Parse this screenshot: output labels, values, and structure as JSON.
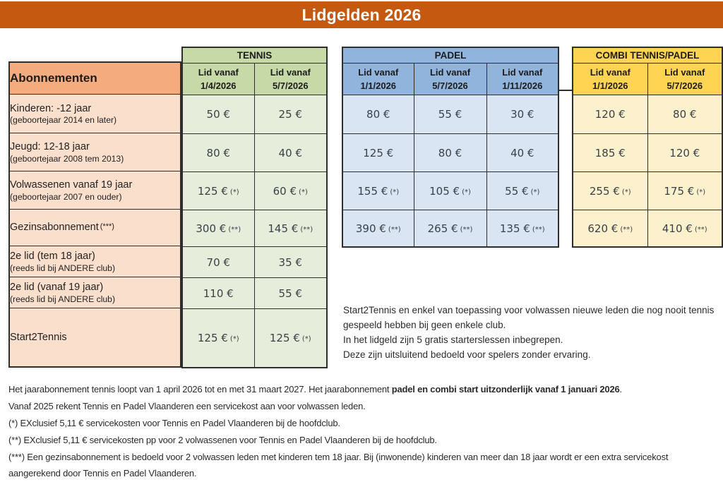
{
  "title": "Lidgelden 2026",
  "colors": {
    "banner_bg": "#C4590F",
    "banner_text": "#FFFFFF",
    "label_header_bg": "#F4AC7E",
    "label_body_bg": "#FBDFCD",
    "tennis_header_bg": "#C6D9A7",
    "tennis_body_bg": "#E6EEDB",
    "padel_header_bg": "#90B4DC",
    "padel_body_bg": "#D9E5F2",
    "combi_header_bg": "#FFD452",
    "combi_body_bg": "#FCF0CD",
    "grid_border": "#2E2E2E"
  },
  "table": {
    "corner_label": "Abonnementen",
    "groups": [
      {
        "id": "tennis",
        "name": "TENNIS",
        "columns": [
          {
            "line1": "Lid vanaf",
            "line2": "1/4/2026"
          },
          {
            "line1": "Lid vanaf",
            "line2": "5/7/2026"
          }
        ]
      },
      {
        "id": "padel",
        "name": "PADEL",
        "columns": [
          {
            "line1": "Lid vanaf",
            "line2": "1/1/2026"
          },
          {
            "line1": "Lid vanaf",
            "line2": "5/7/2026"
          },
          {
            "line1": "Lid vanaf",
            "line2": "1/11/2026"
          }
        ]
      },
      {
        "id": "combi",
        "name": "COMBI TENNIS/PADEL",
        "columns": [
          {
            "line1": "Lid vanaf",
            "line2": "1/1/2026"
          },
          {
            "line1": "Lid vanaf",
            "line2": "5/7/2026"
          }
        ]
      }
    ],
    "rows": [
      {
        "label": "Kinderen: -12 jaar",
        "sublabel": "(geboortejaar 2014 en later)",
        "tennis": [
          {
            "value": "50 €"
          },
          {
            "value": "25 €"
          }
        ],
        "padel": [
          {
            "value": "80 €"
          },
          {
            "value": "55 €"
          },
          {
            "value": "30 €"
          }
        ],
        "combi": [
          {
            "value": "120 €"
          },
          {
            "value": "80 €"
          }
        ]
      },
      {
        "label": "Jeugd: 12-18 jaar",
        "sublabel": "(geboortejaar 2008 tem 2013)",
        "tennis": [
          {
            "value": "80 €"
          },
          {
            "value": "40 €"
          }
        ],
        "padel": [
          {
            "value": "125 €"
          },
          {
            "value": "80 €"
          },
          {
            "value": "40 €"
          }
        ],
        "combi": [
          {
            "value": "185 €"
          },
          {
            "value": "120 €"
          }
        ]
      },
      {
        "label": "Volwassenen vanaf 19 jaar",
        "sublabel": "(geboortejaar 2007 en ouder)",
        "tennis": [
          {
            "value": "125 €",
            "note": "(*)"
          },
          {
            "value": "60 €",
            "note": "(*)"
          }
        ],
        "padel": [
          {
            "value": "155 €",
            "note": "(*)"
          },
          {
            "value": "105 €",
            "note": "(*)"
          },
          {
            "value": "55 €",
            "note": "(*)"
          }
        ],
        "combi": [
          {
            "value": "255 €",
            "note": "(*)"
          },
          {
            "value": "175 €",
            "note": "(*)"
          }
        ]
      },
      {
        "label": "Gezinsabonnement",
        "label_note": "(***)",
        "tennis": [
          {
            "value": "300 €",
            "note": "(**)"
          },
          {
            "value": "145 €",
            "note": "(**)"
          }
        ],
        "padel": [
          {
            "value": "390 €",
            "note": "(**)"
          },
          {
            "value": "265 €",
            "note": "(**)"
          },
          {
            "value": "135 €",
            "note": "(**)"
          }
        ],
        "combi": [
          {
            "value": "620 €",
            "note": "(**)"
          },
          {
            "value": "410 €",
            "note": "(**)"
          }
        ]
      },
      {
        "label": "2e lid (tem 18 jaar)",
        "sublabel": "(reeds lid bij ANDERE club)",
        "tennis": [
          {
            "value": "70 €"
          },
          {
            "value": "35 €"
          }
        ]
      },
      {
        "label": "2e lid (vanaf 19 jaar)",
        "sublabel": "(reeds lid bij ANDERE club)",
        "tennis": [
          {
            "value": "110 €"
          },
          {
            "value": "55 €"
          }
        ]
      },
      {
        "label": "Start2Tennis",
        "tennis": [
          {
            "value": "125 €",
            "note": "(*)"
          },
          {
            "value": "125 €",
            "note": "(*)"
          }
        ]
      }
    ]
  },
  "side_note": {
    "lines": [
      "Start2Tennis en enkel van toepassing voor volwassen nieuwe leden die nog nooit tennis gespeeld hebben bij geen enkele club.",
      "In het lidgeld zijn 5 gratis starterslessen inbegrepen.",
      "Deze zijn uitsluitend bedoeld voor spelers zonder ervaring."
    ]
  },
  "footer": {
    "paragraphs": [
      {
        "parts": [
          {
            "text": "Het jaarabonnement tennis loopt van 1 april 2026 tot en met 31 maart 2027. Het jaarabonnement ",
            "bold": false
          },
          {
            "text": "padel en combi start uitzonderlijk vanaf 1 januari 2026",
            "bold": true
          },
          {
            "text": ".",
            "bold": false
          }
        ]
      },
      {
        "parts": [
          {
            "text": "Vanaf 2025 rekent Tennis en Padel Vlaanderen een servicekost aan voor volwassen leden.",
            "bold": false
          }
        ]
      },
      {
        "parts": [
          {
            "text": "(*) EXclusief 5,11 € servicekosten voor Tennis en Padel Vlaanderen bij de hoofdclub.",
            "bold": false
          }
        ]
      },
      {
        "parts": [
          {
            "text": "(**) EXclusief 5,11 € servicekosten pp voor 2 volwassenen voor Tennis en Padel Vlaanderen bij de hoofdclub.",
            "bold": false
          }
        ]
      },
      {
        "parts": [
          {
            "text": "(***) Een gezinsabonnement is bedoeld voor 2 volwassen leden met kinderen tem 18 jaar. Bij (inwonende) kinderen van meer dan 18 jaar wordt er een extra servicekost aangerekend door Tennis en Padel Vlaanderen.",
            "bold": false
          }
        ]
      }
    ]
  }
}
